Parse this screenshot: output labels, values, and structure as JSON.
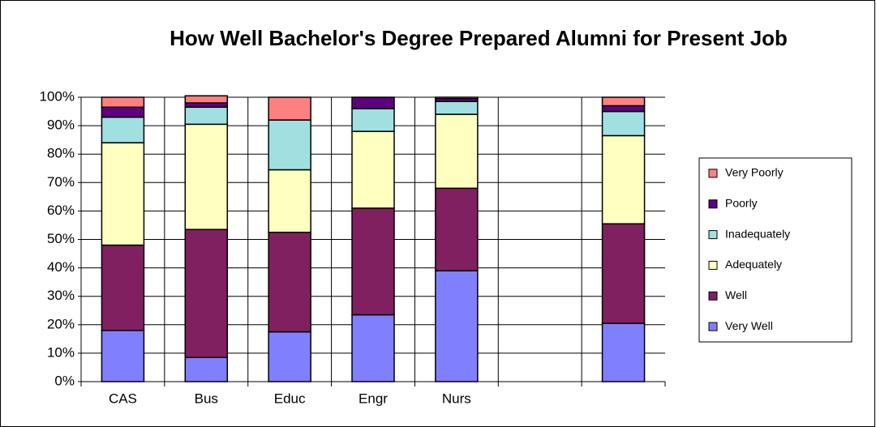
{
  "chart_data": {
    "type": "bar",
    "stacked": true,
    "title": "How Well Bachelor's Degree Prepared Alumni for Present Job",
    "categories": [
      "CAS",
      "Bus",
      "Educ",
      "Engr",
      "Nurs",
      null,
      null
    ],
    "series": [
      {
        "name": "Very Well",
        "color": "#8080ff",
        "values": [
          18,
          8.5,
          17.5,
          23.5,
          39,
          null,
          20.5
        ]
      },
      {
        "name": "Well",
        "color": "#802060",
        "values": [
          30,
          45,
          35,
          37.5,
          29,
          null,
          35
        ]
      },
      {
        "name": "Adequately",
        "color": "#ffffc0",
        "values": [
          36,
          37,
          22,
          27,
          26,
          null,
          31
        ]
      },
      {
        "name": "Inadequately",
        "color": "#a0e0e0",
        "values": [
          9,
          6,
          17.5,
          8,
          4.5,
          null,
          8.5
        ]
      },
      {
        "name": "Poorly",
        "color": "#600080",
        "values": [
          3.5,
          1.5,
          0,
          4,
          1,
          null,
          2
        ]
      },
      {
        "name": "Very Poorly",
        "color": "#ff8080",
        "values": [
          3.5,
          2.5,
          8,
          0,
          0.5,
          null,
          3
        ]
      }
    ],
    "ylim": [
      0,
      100
    ],
    "yticks": [
      {
        "value": 0,
        "label": "0%"
      },
      {
        "value": 10,
        "label": "10%"
      },
      {
        "value": 20,
        "label": "20%"
      },
      {
        "value": 30,
        "label": "30%"
      },
      {
        "value": 40,
        "label": "40%"
      },
      {
        "value": 50,
        "label": "50%"
      },
      {
        "value": 60,
        "label": "60%"
      },
      {
        "value": 70,
        "label": "70%"
      },
      {
        "value": 80,
        "label": "80%"
      },
      {
        "value": 90,
        "label": "90%"
      },
      {
        "value": 100,
        "label": "100%"
      }
    ],
    "grid": true,
    "legend": "right"
  }
}
